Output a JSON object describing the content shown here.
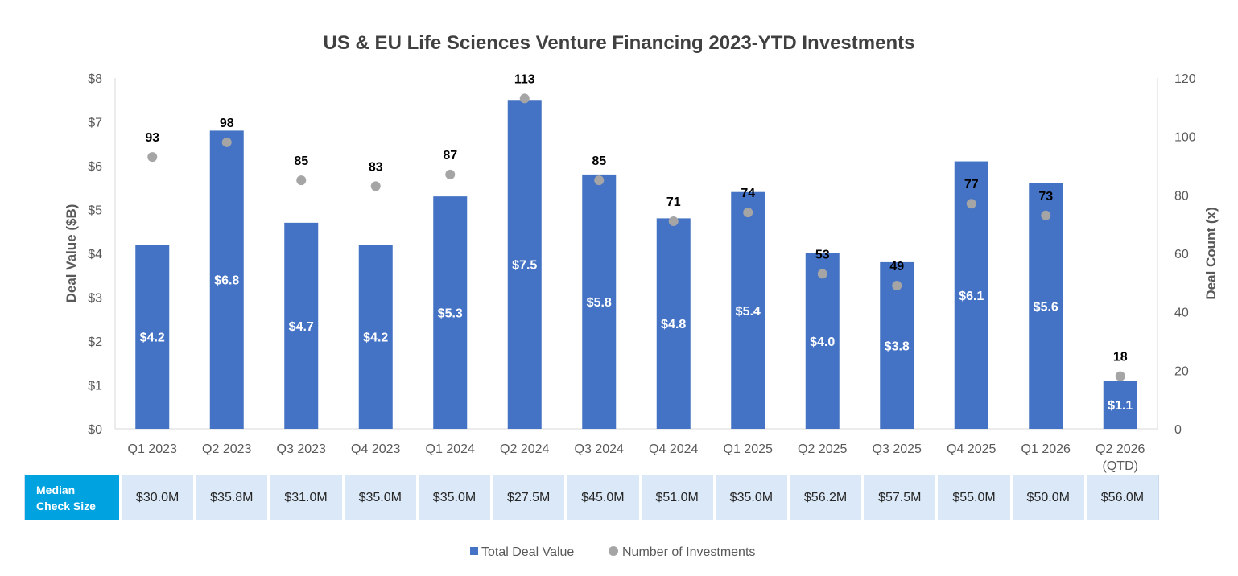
{
  "chart_data": {
    "type": "bar",
    "title": "US & EU Life Sciences Venture Financing 2023-YTD Investments",
    "ylabel": "Deal Value ($B)",
    "y2label": "Deal Count (x)",
    "ylim": [
      0,
      8
    ],
    "y2lim": [
      0,
      120
    ],
    "yticks": [
      "$0",
      "$1",
      "$2",
      "$3",
      "$4",
      "$5",
      "$6",
      "$7",
      "$8"
    ],
    "y2ticks": [
      "0",
      "20",
      "40",
      "60",
      "80",
      "100",
      "120"
    ],
    "categories": [
      "Q1 2023",
      "Q2 2023",
      "Q3 2023",
      "Q4 2023",
      "Q1 2024",
      "Q2 2024",
      "Q3 2024",
      "Q4 2024",
      "Q1 2025",
      "Q2 2025",
      "Q3 2025",
      "Q4 2025",
      "Q1 2026",
      "Q2 2026"
    ],
    "category_sublabels": [
      "",
      "",
      "",
      "",
      "",
      "",
      "",
      "",
      "",
      "",
      "",
      "",
      "",
      "(QTD)"
    ],
    "series": [
      {
        "name": "Total Deal Value",
        "type": "bar",
        "axis": "left",
        "color": "#4472c4",
        "values": [
          4.2,
          6.8,
          4.7,
          4.2,
          5.3,
          7.5,
          5.8,
          4.8,
          5.4,
          4.0,
          3.8,
          6.1,
          5.6,
          1.1
        ],
        "labels": [
          "$4.2",
          "$6.8",
          "$4.7",
          "$4.2",
          "$5.3",
          "$7.5",
          "$5.8",
          "$4.8",
          "$5.4",
          "$4.0",
          "$3.8",
          "$6.1",
          "$5.6",
          "$1.1"
        ]
      },
      {
        "name": "Number of Investments",
        "type": "scatter",
        "axis": "right",
        "color": "#a5a5a5",
        "values": [
          93,
          98,
          85,
          83,
          87,
          113,
          85,
          71,
          74,
          53,
          49,
          77,
          73,
          18
        ],
        "labels": [
          "93",
          "98",
          "85",
          "83",
          "87",
          "113",
          "85",
          "71",
          "74",
          "53",
          "49",
          "77",
          "73",
          "18"
        ]
      }
    ],
    "legend_position": "bottom",
    "grid": false
  },
  "median_table": {
    "header": "Median Check Size",
    "values": [
      "$30.0M",
      "$35.8M",
      "$31.0M",
      "$35.0M",
      "$35.0M",
      "$27.5M",
      "$45.0M",
      "$51.0M",
      "$35.0M",
      "$56.2M",
      "$57.5M",
      "$55.0M",
      "$50.0M",
      "$56.0M"
    ]
  }
}
